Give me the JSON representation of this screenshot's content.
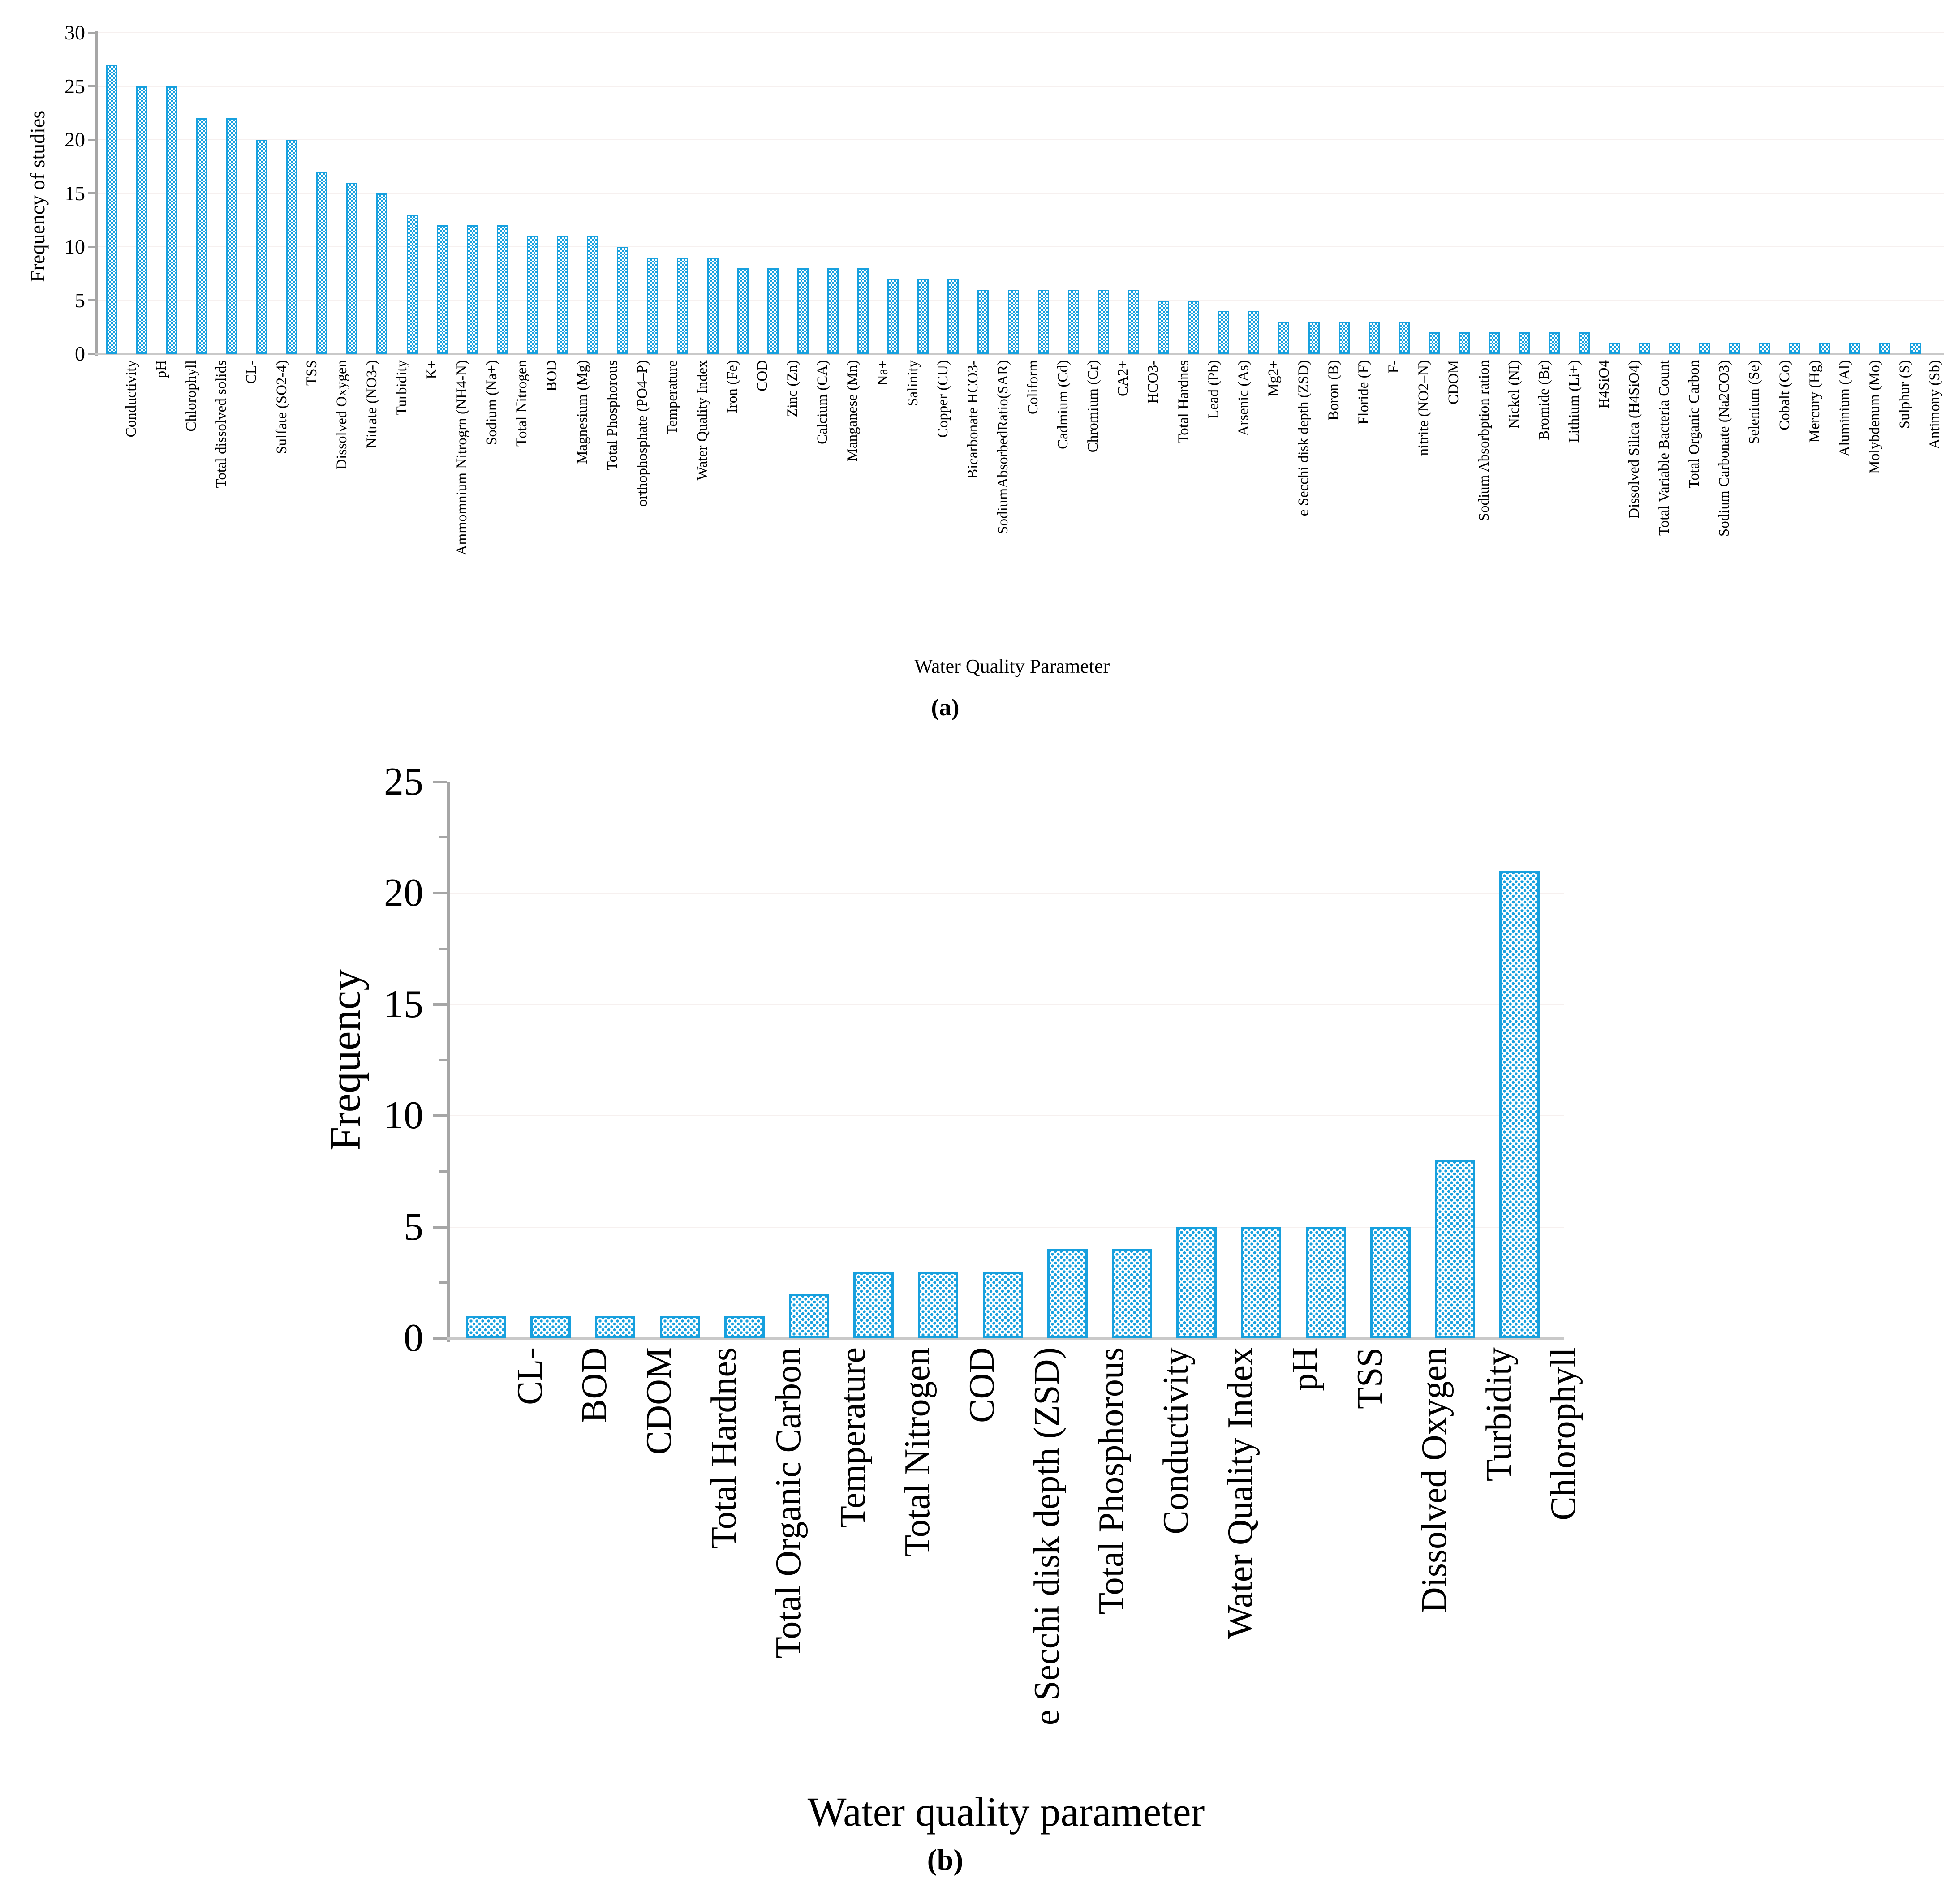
{
  "figure": {
    "colors": {
      "accent": "#17A0DE",
      "axis": "#A6A6A6",
      "baseline": "#C9C9C9",
      "text": "#000000"
    }
  },
  "chart_data": [
    {
      "type": "bar",
      "panel": "a",
      "caption": "(a)",
      "ylabel": "Frequency of studies",
      "xlabel": "Water Quality Parameter",
      "ylim": [
        0,
        30
      ],
      "yticks": [
        0,
        5,
        10,
        15,
        20,
        25,
        30
      ],
      "grid": "faint horizontal lines at major ticks",
      "legend": "none",
      "bar_pattern": "blue checkerboard fill with blue outline",
      "categories": [
        "Conductivity",
        "pH",
        "Chlorophyll",
        "Total dissolved solids",
        "CL-",
        "Sulfate (SO2-4)",
        "TSS",
        "Dissolved Oxygen",
        "Nitrate (NO3-)",
        "Turbidity",
        "K+",
        "Ammomnium Nitrogrn (NH4-N)",
        "Sodium (Na+)",
        "Total Nitrogen",
        "BOD",
        "Magnesium (Mg)",
        "Total Phosphorous",
        "orthophosphate (PO4–P)",
        "Temperature",
        "Water Quality Index",
        "Iron (Fe)",
        "COD",
        "Zinc (Zn)",
        "Calcium (CA)",
        "Manganese (Mn)",
        "Na+",
        "Salinity",
        "Copper (CU)",
        "Bicarbonate HCO3-",
        "SodiumAbsorbedRatio(SAR)",
        "Coliform",
        "Cadmium (Cd)",
        "Chromium (Cr)",
        "CA2+",
        "HCO3-",
        "Total Hardnes",
        "Lead (Pb)",
        "Arsenic (As)",
        "Mg2+",
        "e Secchi disk depth (ZSD)",
        "Boron (B)",
        "Floride (F)",
        "F-",
        "nitrite (NO2–N)",
        "CDOM",
        "Sodium Absorbption ration",
        "Nickel (NI)",
        "Bromide (Br)",
        "Lithium (Li+)",
        "H4SiO4",
        "Dissolved Silica (H4SiO4)",
        "Total Variable Bacteria Count",
        "Total Organic Carbon",
        "Sodium Carbonate (Na2CO3)",
        "Selenium (Se)",
        "Cobalt (Co)",
        "Mercury (Hg)",
        "Aluminium (Al)",
        "Molybdenum (Mo)",
        "Sulphur (S)",
        "Antimony (Sb)"
      ],
      "values": [
        27,
        25,
        25,
        22,
        22,
        20,
        20,
        17,
        16,
        15,
        13,
        12,
        12,
        12,
        11,
        11,
        11,
        10,
        9,
        9,
        9,
        8,
        8,
        8,
        8,
        8,
        7,
        7,
        7,
        6,
        6,
        6,
        6,
        6,
        6,
        5,
        5,
        4,
        4,
        3,
        3,
        3,
        3,
        3,
        2,
        2,
        2,
        2,
        2,
        2,
        1,
        1,
        1,
        1,
        1,
        1,
        1,
        1,
        1,
        1,
        1
      ]
    },
    {
      "type": "bar",
      "panel": "b",
      "caption": "(b)",
      "ylabel": "Frequency",
      "xlabel": "Water quality parameter",
      "ylim": [
        0,
        25
      ],
      "yticks": [
        0,
        5,
        10,
        15,
        20,
        25
      ],
      "minor_yticks": [
        2.5,
        7.5,
        12.5,
        17.5,
        22.5
      ],
      "grid": "off",
      "legend": "none",
      "bar_pattern": "blue dotted fill with blue outline",
      "categories": [
        "CL-",
        "BOD",
        "CDOM",
        "Total Hardnes",
        "Total Organic Carbon",
        "Temperature",
        "Total Nitrogen",
        "COD",
        "e Secchi disk depth (ZSD)",
        "Total Phosphorous",
        "Conductivity",
        "Water Quality Index",
        "pH",
        "TSS",
        "Dissolved Oxygen",
        "Turbidity",
        "Chlorophyll"
      ],
      "values": [
        1,
        1,
        1,
        1,
        1,
        2,
        3,
        3,
        3,
        4,
        4,
        5,
        5,
        5,
        5,
        8,
        21
      ]
    }
  ]
}
